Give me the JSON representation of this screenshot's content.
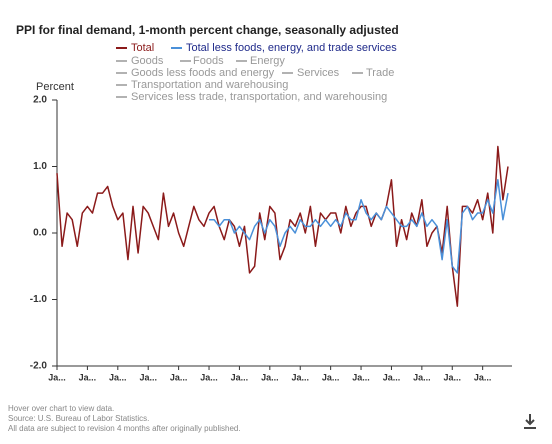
{
  "chart_data": {
    "type": "line",
    "title": "PPI for final demand, 1-month percent change, seasonally adjusted",
    "y_label": "Percent",
    "categories": [
      "Ja...",
      null,
      null,
      null,
      null,
      null,
      "Ja...",
      null,
      null,
      null,
      null,
      null,
      "Ja...",
      null,
      null,
      null,
      null,
      null,
      "Ja...",
      null,
      null,
      null,
      null,
      null,
      "Ja...",
      null,
      null,
      null,
      null,
      null,
      "Ja...",
      null,
      null,
      null,
      null,
      null,
      "Ja...",
      null,
      null,
      null,
      null,
      null,
      "Ja...",
      null,
      null,
      null,
      null,
      null,
      "Ja...",
      null,
      null,
      null,
      null,
      null,
      "Ja...",
      null,
      null,
      null,
      null,
      null,
      "Ja...",
      null,
      null,
      null,
      null,
      null,
      "Ja...",
      null,
      null,
      null,
      null,
      null,
      "Ja...",
      null,
      null,
      null,
      null,
      null,
      "Ja...",
      null,
      null,
      null,
      null,
      null,
      "Ja...",
      null,
      null,
      null,
      null,
      null
    ],
    "series": [
      {
        "name": "Total",
        "color": "#8b1a1a",
        "values": [
          0.9,
          -0.2,
          0.3,
          0.2,
          -0.2,
          0.3,
          0.4,
          0.3,
          0.6,
          0.6,
          0.7,
          0.4,
          0.2,
          0.3,
          -0.4,
          0.4,
          -0.3,
          0.4,
          0.3,
          0.1,
          -0.1,
          0.6,
          0.1,
          0.3,
          0.0,
          -0.2,
          0.1,
          0.4,
          0.2,
          0.1,
          0.3,
          0.4,
          0.1,
          -0.1,
          0.2,
          0.1,
          -0.2,
          0.1,
          -0.6,
          -0.5,
          0.3,
          -0.1,
          0.4,
          0.3,
          -0.4,
          -0.2,
          0.2,
          0.1,
          0.3,
          0.0,
          0.4,
          -0.2,
          0.3,
          0.2,
          0.3,
          0.3,
          0.0,
          0.4,
          0.1,
          0.3,
          0.4,
          0.4,
          0.1,
          0.3,
          0.2,
          0.4,
          0.8,
          -0.2,
          0.2,
          -0.1,
          0.3,
          0.1,
          0.5,
          -0.2,
          0.0,
          0.1,
          -0.3,
          0.4,
          -0.5,
          -1.1,
          0.4,
          0.4,
          0.3,
          0.5,
          0.2,
          0.6,
          0.0,
          1.3,
          0.5,
          1.0
        ]
      },
      {
        "name": "Total less foods, energy, and trade services",
        "color": "#4a90d9",
        "values": [
          null,
          null,
          null,
          null,
          null,
          null,
          null,
          null,
          null,
          null,
          null,
          null,
          null,
          null,
          null,
          null,
          null,
          null,
          null,
          null,
          null,
          null,
          null,
          null,
          null,
          null,
          null,
          null,
          null,
          null,
          0.2,
          0.2,
          0.1,
          0.2,
          0.2,
          0.0,
          0.1,
          0.0,
          -0.1,
          0.1,
          0.2,
          0.0,
          0.2,
          0.1,
          -0.2,
          0.0,
          0.1,
          0.0,
          0.2,
          0.1,
          0.1,
          0.2,
          0.1,
          0.2,
          0.1,
          0.2,
          0.1,
          0.3,
          0.2,
          0.2,
          0.5,
          0.3,
          0.2,
          0.3,
          0.2,
          0.4,
          0.3,
          0.2,
          0.1,
          0.1,
          0.2,
          0.1,
          0.3,
          0.1,
          0.2,
          0.1,
          -0.4,
          0.2,
          -0.5,
          -0.6,
          0.3,
          0.4,
          0.2,
          0.3,
          0.3,
          0.5,
          0.3,
          0.8,
          0.2,
          0.6
        ]
      }
    ],
    "hidden_series": [
      {
        "name": "Goods",
        "color": "#999999"
      },
      {
        "name": "Foods",
        "color": "#999999"
      },
      {
        "name": "Energy",
        "color": "#999999"
      },
      {
        "name": "Goods less foods and energy",
        "color": "#999999"
      },
      {
        "name": "Services",
        "color": "#999999"
      },
      {
        "name": "Trade",
        "color": "#999999"
      },
      {
        "name": "Transportation and warehousing",
        "color": "#999999"
      },
      {
        "name": "Services less trade, transportation, and warehousing",
        "color": "#999999"
      }
    ],
    "ylim": [
      -2.0,
      2.0
    ],
    "yticks": [
      {
        "value": 2.0,
        "label": "2.0"
      },
      {
        "value": 1.0,
        "label": "1.0"
      },
      {
        "value": 0.0,
        "label": "0.0"
      },
      {
        "value": -1.0,
        "label": "-1.0"
      },
      {
        "value": -2.0,
        "label": "-2.0"
      }
    ],
    "grid": false
  },
  "footer": {
    "hint": "Hover over chart to view data.",
    "source": "Source: U.S. Bureau of Labor Statistics.",
    "note": "All data are subject to revision 4 months after originally published."
  }
}
